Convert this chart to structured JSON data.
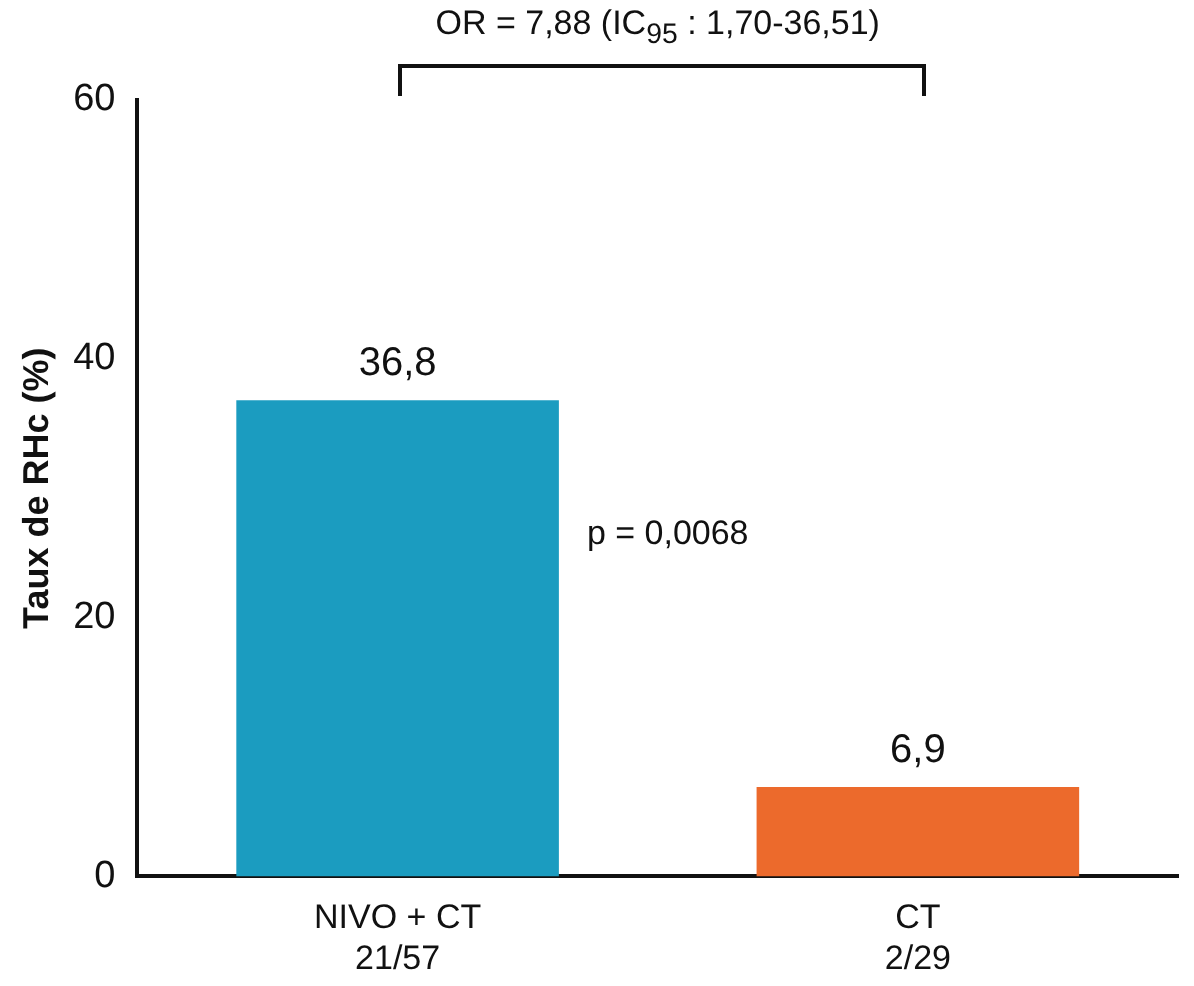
{
  "chart_data": {
    "type": "bar",
    "ylabel": "Taux de RHc (%)",
    "categories": [
      "NIVO + CT\n21/57",
      "CT\n2/29"
    ],
    "values": [
      36.8,
      6.9
    ],
    "colors": [
      "#1b9cc0",
      "#ec6a2c"
    ],
    "value_labels": [
      "36,8",
      "6,9"
    ],
    "ylim": [
      0,
      60
    ],
    "yticks": [
      0,
      20,
      40,
      60
    ],
    "grid": false,
    "annotations": [
      "OR = 7,88 (IC$_{95}$ : 1,70-36,51)",
      "p = 0,0068"
    ]
  }
}
